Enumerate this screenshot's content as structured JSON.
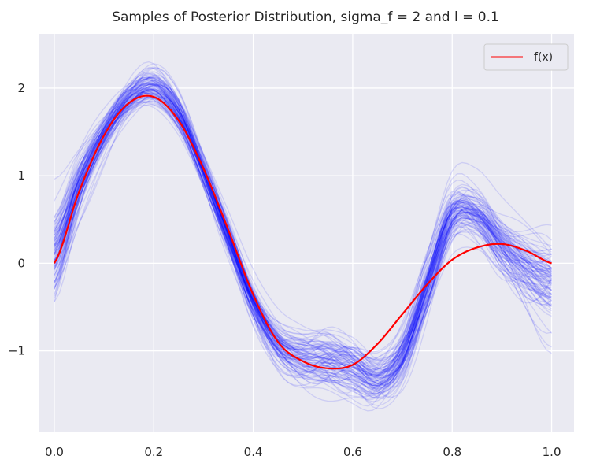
{
  "chart_data": {
    "type": "line",
    "title": "Samples of Posterior Distribution, sigma_f = 2 and l = 0.1",
    "xlabel": "",
    "ylabel": "",
    "xlim": [
      -0.03,
      1.045
    ],
    "ylim": [
      -1.93,
      2.62
    ],
    "x_ticks": [
      0.0,
      0.2,
      0.4,
      0.6,
      0.8,
      1.0
    ],
    "x_tick_labels": [
      "0.0",
      "0.2",
      "0.4",
      "0.6",
      "0.8",
      "1.0"
    ],
    "y_ticks": [
      -1,
      0,
      1,
      2
    ],
    "y_tick_labels": [
      "−1",
      "0",
      "1",
      "2"
    ],
    "grid": true,
    "legend": {
      "position": "top-right",
      "entries": [
        {
          "label": "f(x)",
          "color": "#ff0000"
        }
      ]
    },
    "series": [
      {
        "name": "f(x)",
        "color": "#ff0000",
        "x": [
          0.0,
          0.05,
          0.1,
          0.15,
          0.2,
          0.25,
          0.3,
          0.35,
          0.4,
          0.45,
          0.5,
          0.55,
          0.6,
          0.65,
          0.7,
          0.75,
          0.8,
          0.85,
          0.9,
          0.95,
          1.0
        ],
        "y": [
          0.0,
          0.82,
          1.46,
          1.83,
          1.9,
          1.63,
          1.08,
          0.38,
          -0.36,
          -0.9,
          -1.12,
          -1.2,
          -1.16,
          -0.92,
          -0.58,
          -0.24,
          0.04,
          0.18,
          0.22,
          0.14,
          0.0
        ]
      }
    ],
    "samples": {
      "description_label": "",
      "count": 100,
      "color": "#0000ff",
      "opacity": 0.12,
      "mean_x": [
        0.0,
        0.05,
        0.1,
        0.15,
        0.2,
        0.25,
        0.3,
        0.35,
        0.4,
        0.45,
        0.5,
        0.55,
        0.6,
        0.65,
        0.7,
        0.75,
        0.8,
        0.85,
        0.9,
        0.95,
        1.0
      ],
      "mean_y": [
        0.1,
        0.9,
        1.48,
        1.88,
        2.02,
        1.72,
        1.05,
        0.3,
        -0.45,
        -0.92,
        -1.08,
        -1.1,
        -1.18,
        -1.32,
        -1.05,
        -0.25,
        0.55,
        0.55,
        0.2,
        -0.05,
        -0.2
      ],
      "spread_y": [
        0.35,
        0.22,
        0.15,
        0.14,
        0.15,
        0.14,
        0.13,
        0.13,
        0.14,
        0.16,
        0.2,
        0.24,
        0.22,
        0.2,
        0.2,
        0.22,
        0.22,
        0.2,
        0.22,
        0.26,
        0.32
      ]
    }
  },
  "colors": {
    "background": "#eaeaf2",
    "grid": "#ffffff",
    "sample_line": "#0000ff",
    "true_function": "#ff0000"
  }
}
